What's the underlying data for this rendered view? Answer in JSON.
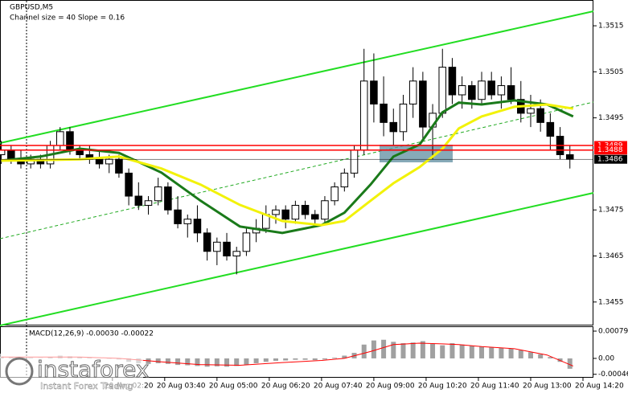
{
  "chart_data": {
    "type": "candlestick",
    "title": "GBPUSD,M5",
    "subtitle": "Channel size = 40 Slope = 0.16",
    "xlim": [
      -6.4,
      175.2
    ],
    "ylim": [
      1.34499,
      1.35206
    ],
    "yticks": [
      1.3515,
      1.3505,
      1.3495,
      1.3475,
      1.3465,
      1.3455
    ],
    "xticks": [
      {
        "value": 28,
        "label": "20 Aug 02:20"
      },
      {
        "value": 44,
        "label": "20 Aug 03:40"
      },
      {
        "value": 60,
        "label": "20 Aug 05:00"
      },
      {
        "value": 76,
        "label": "20 Aug 06:20"
      },
      {
        "value": 92,
        "label": "20 Aug 07:40"
      },
      {
        "value": 108,
        "label": "20 Aug 09:00"
      },
      {
        "value": 124,
        "label": "20 Aug 10:20"
      },
      {
        "value": 140,
        "label": "20 Aug 11:40"
      },
      {
        "value": 156,
        "label": "20 Aug 13:00"
      },
      {
        "value": 172,
        "label": "20 Aug 14:20"
      }
    ],
    "x": [
      -6,
      -3,
      0,
      3,
      6,
      9,
      12,
      15,
      18,
      21,
      24,
      27,
      30,
      33,
      36,
      39,
      42,
      45,
      48,
      51,
      54,
      57,
      60,
      63,
      66,
      69,
      72,
      75,
      78,
      81,
      84,
      87,
      90,
      93,
      96,
      99,
      102,
      105,
      108,
      111,
      114,
      117,
      120,
      123,
      126,
      129,
      132,
      135,
      138,
      141,
      144,
      147,
      150,
      153,
      156,
      159,
      162,
      165,
      168
    ],
    "open": [
      1.3487,
      1.3488,
      1.3486,
      1.3485,
      1.3486,
      1.3485,
      1.3489,
      1.3492,
      1.3488,
      1.3487,
      1.3486,
      1.3485,
      1.3486,
      1.3483,
      1.3478,
      1.3476,
      1.3477,
      1.348,
      1.3475,
      1.3472,
      1.3473,
      1.347,
      1.3466,
      1.3468,
      1.3465,
      1.3466,
      1.347,
      1.3471,
      1.3474,
      1.3475,
      1.3473,
      1.3476,
      1.3474,
      1.3473,
      1.3477,
      1.348,
      1.3483,
      1.3488,
      1.3503,
      1.3498,
      1.3494,
      1.3492,
      1.3498,
      1.3503,
      1.3493,
      1.3496,
      1.3506,
      1.35,
      1.3502,
      1.3499,
      1.3503,
      1.35,
      1.3502,
      1.3499,
      1.3496,
      1.3497,
      1.3494,
      1.3491,
      1.3487
    ],
    "high": [
      1.349,
      1.3489,
      1.3488,
      1.3487,
      1.3487,
      1.349,
      1.3493,
      1.3493,
      1.3489,
      1.3489,
      1.3488,
      1.3487,
      1.3487,
      1.3484,
      1.3481,
      1.3478,
      1.3482,
      1.3481,
      1.3478,
      1.3474,
      1.3476,
      1.3471,
      1.3469,
      1.347,
      1.3467,
      1.3471,
      1.3473,
      1.3476,
      1.3476,
      1.3476,
      1.3477,
      1.3477,
      1.3475,
      1.3478,
      1.3481,
      1.3484,
      1.3489,
      1.351,
      1.3509,
      1.3504,
      1.3497,
      1.35,
      1.3506,
      1.3505,
      1.3498,
      1.351,
      1.3508,
      1.3504,
      1.3503,
      1.3505,
      1.3505,
      1.3504,
      1.3506,
      1.3503,
      1.35,
      1.3499,
      1.3496,
      1.3493,
      1.3489
    ],
    "low": [
      1.3485,
      1.3485,
      1.3484,
      1.3484,
      1.3484,
      1.3484,
      1.3488,
      1.3487,
      1.3486,
      1.3485,
      1.3484,
      1.3483,
      1.3482,
      1.3476,
      1.3475,
      1.3474,
      1.3476,
      1.3474,
      1.3471,
      1.3469,
      1.3468,
      1.3464,
      1.3463,
      1.3464,
      1.3461,
      1.3465,
      1.3468,
      1.347,
      1.3472,
      1.3471,
      1.3472,
      1.3473,
      1.3472,
      1.3472,
      1.3476,
      1.3479,
      1.3482,
      1.3487,
      1.3494,
      1.3491,
      1.3489,
      1.349,
      1.3495,
      1.349,
      1.3486,
      1.3495,
      1.3498,
      1.3497,
      1.3497,
      1.3498,
      1.3499,
      1.3497,
      1.3498,
      1.3494,
      1.3493,
      1.3492,
      1.3488,
      1.3486,
      1.3484
    ],
    "close": [
      1.3488,
      1.3486,
      1.3485,
      1.3486,
      1.3485,
      1.3489,
      1.3492,
      1.3488,
      1.3487,
      1.3486,
      1.3485,
      1.3486,
      1.3483,
      1.3478,
      1.3476,
      1.3477,
      1.348,
      1.3475,
      1.3472,
      1.3473,
      1.347,
      1.3466,
      1.3468,
      1.3465,
      1.3466,
      1.347,
      1.3471,
      1.3474,
      1.3475,
      1.3473,
      1.3476,
      1.3474,
      1.3473,
      1.3477,
      1.348,
      1.3483,
      1.3488,
      1.3503,
      1.3498,
      1.3494,
      1.3492,
      1.3498,
      1.3503,
      1.3493,
      1.3496,
      1.3506,
      1.35,
      1.3502,
      1.3499,
      1.3503,
      1.35,
      1.3502,
      1.3499,
      1.3496,
      1.3497,
      1.3494,
      1.3491,
      1.3487,
      1.3486
    ],
    "color": "#000000",
    "lines": [
      {
        "color": "#1a7a1a",
        "x": [
          -6,
          6,
          18,
          30,
          43,
          55,
          67,
          80,
          92,
          99,
          107,
          114,
          122,
          129,
          134,
          141,
          151,
          161,
          169
        ],
        "values": [
          1.34857,
          1.34866,
          1.34883,
          1.34874,
          1.34831,
          1.3477,
          1.34714,
          1.347,
          1.34717,
          1.34744,
          1.34805,
          1.34866,
          1.34892,
          1.34962,
          1.34983,
          1.34979,
          1.34988,
          1.34979,
          1.34953
        ]
      },
      {
        "color": "#f2f20a",
        "x": [
          -6,
          6,
          18,
          30,
          43,
          55,
          67,
          80,
          92,
          99,
          107,
          114,
          122,
          129,
          134,
          141,
          151,
          161,
          169
        ],
        "values": [
          1.34857,
          1.34858,
          1.3486,
          1.34866,
          1.3484,
          1.34805,
          1.34761,
          1.34726,
          1.34717,
          1.34726,
          1.3477,
          1.34808,
          1.34843,
          1.34883,
          1.34927,
          1.34953,
          1.34974,
          1.34979,
          1.3497
        ]
      }
    ],
    "price_markers": [
      {
        "value": 1.3489,
        "color": "#ff0000"
      },
      {
        "value": 1.3488,
        "color": "#ff0000"
      },
      {
        "value": 1.3486,
        "color": "#000000"
      }
    ],
    "macd": {
      "label": "MACD(12,26,9) -0.00030 -0.00022",
      "ylim": [
        -0.00056,
        0.00093
      ],
      "yticks": [
        0.00079,
        {
          "value": 0,
          "label": "0.00"
        },
        -0.00046
      ],
      "histogram_color": "#a0a0a0",
      "histogram": [
        5e-05,
        3e-05,
        2e-05,
        2e-05,
        1e-05,
        4e-05,
        8e-05,
        6e-05,
        4e-05,
        2e-05,
        0.0,
        -1e-05,
        -3e-05,
        -0.0001,
        -0.00014,
        -0.00016,
        -0.00014,
        -0.00016,
        -0.00019,
        -0.0002,
        -0.00022,
        -0.00024,
        -0.00023,
        -0.00024,
        -0.00022,
        -0.00018,
        -0.00014,
        -0.0001,
        -7e-05,
        -6e-05,
        -4e-05,
        -4e-05,
        -5e-05,
        -3e-05,
        2e-05,
        8e-05,
        0.00016,
        0.0004,
        0.00052,
        0.00054,
        0.00048,
        0.00044,
        0.00046,
        0.0005,
        0.00042,
        0.00038,
        0.00044,
        0.0004,
        0.00036,
        0.00034,
        0.00032,
        0.0003,
        0.00028,
        0.00024,
        0.00018,
        0.00012,
        4e-05,
        -0.0001,
        -0.0003
      ],
      "signal": {
        "color": "#ff0000",
        "x": [
          -6,
          6,
          18,
          30,
          43,
          55,
          67,
          80,
          92,
          99,
          107,
          114,
          122,
          129,
          134,
          141,
          151,
          161,
          169
        ],
        "values": [
          4e-05,
          4e-05,
          4e-05,
          0.0,
          -0.0001,
          -0.00018,
          -0.0002,
          -0.00012,
          -6e-05,
          0.0,
          0.0002,
          0.0004,
          0.00044,
          0.00042,
          0.0004,
          0.00034,
          0.00028,
          0.0001,
          -0.00022
        ]
      }
    }
  },
  "branding": {
    "logo": "instaforex",
    "tagline": "Instant Forex Trading"
  }
}
